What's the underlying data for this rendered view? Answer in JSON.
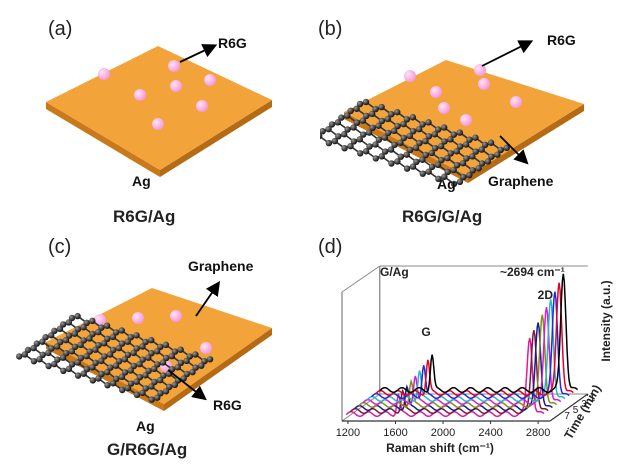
{
  "panels": {
    "a": {
      "label": "(a)",
      "molecule": "R6G",
      "substrate": "Ag",
      "caption": "R6G/Ag"
    },
    "b": {
      "label": "(b)",
      "molecule": "R6G",
      "sheet": "Graphene",
      "substrate": "Ag",
      "caption": "R6G/G/Ag"
    },
    "c": {
      "label": "(c)",
      "molecule": "R6G",
      "sheet": "Graphene",
      "substrate": "Ag",
      "caption": "G/R6G/Ag"
    },
    "d": {
      "label": "(d)"
    }
  },
  "colors": {
    "substrate": "#f2a33a",
    "substrate_edge": "#c9781a",
    "molecule": "#f59ad8",
    "atom": "#2b2b2b",
    "bond": "#333333"
  },
  "chart_data": {
    "type": "line",
    "title": "G/Ag",
    "xlabel": "Raman shift (cm⁻¹)",
    "ylabel": "Intensity (a.u.)",
    "zlabel": "Time (min)",
    "x_ticks": [
      "1200",
      "1600",
      "2000",
      "2400",
      "2800"
    ],
    "xlim": [
      1150,
      2900
    ],
    "z_ticks": [
      "1",
      "3",
      "5",
      "7"
    ],
    "annotations": {
      "g_peak": "G",
      "d2_peak": "2D",
      "d2_position": "~2694 cm⁻¹"
    },
    "peaks": {
      "G": 1590,
      "2D": 2694
    },
    "series": [
      {
        "time": 1,
        "color": "#000000",
        "g_height": 0.3,
        "d2_height": 1.0
      },
      {
        "time": 2,
        "color": "#e8002a",
        "g_height": 0.28,
        "d2_height": 0.95
      },
      {
        "time": 3,
        "color": "#1f2bd6",
        "g_height": 0.26,
        "d2_height": 0.9
      },
      {
        "time": 4,
        "color": "#2ab4c8",
        "g_height": 0.24,
        "d2_height": 0.86
      },
      {
        "time": 5,
        "color": "#d21fd2",
        "g_height": 0.22,
        "d2_height": 0.82
      },
      {
        "time": 6,
        "color": "#8a8a1a",
        "g_height": 0.2,
        "d2_height": 0.78
      },
      {
        "time": 7,
        "color": "#1a1a8a",
        "g_height": 0.18,
        "d2_height": 0.74
      },
      {
        "time": 8,
        "color": "#7a1a3a",
        "g_height": 0.17,
        "d2_height": 0.7
      },
      {
        "time": 9,
        "color": "#e01a9a",
        "g_height": 0.16,
        "d2_height": 0.66
      }
    ]
  }
}
